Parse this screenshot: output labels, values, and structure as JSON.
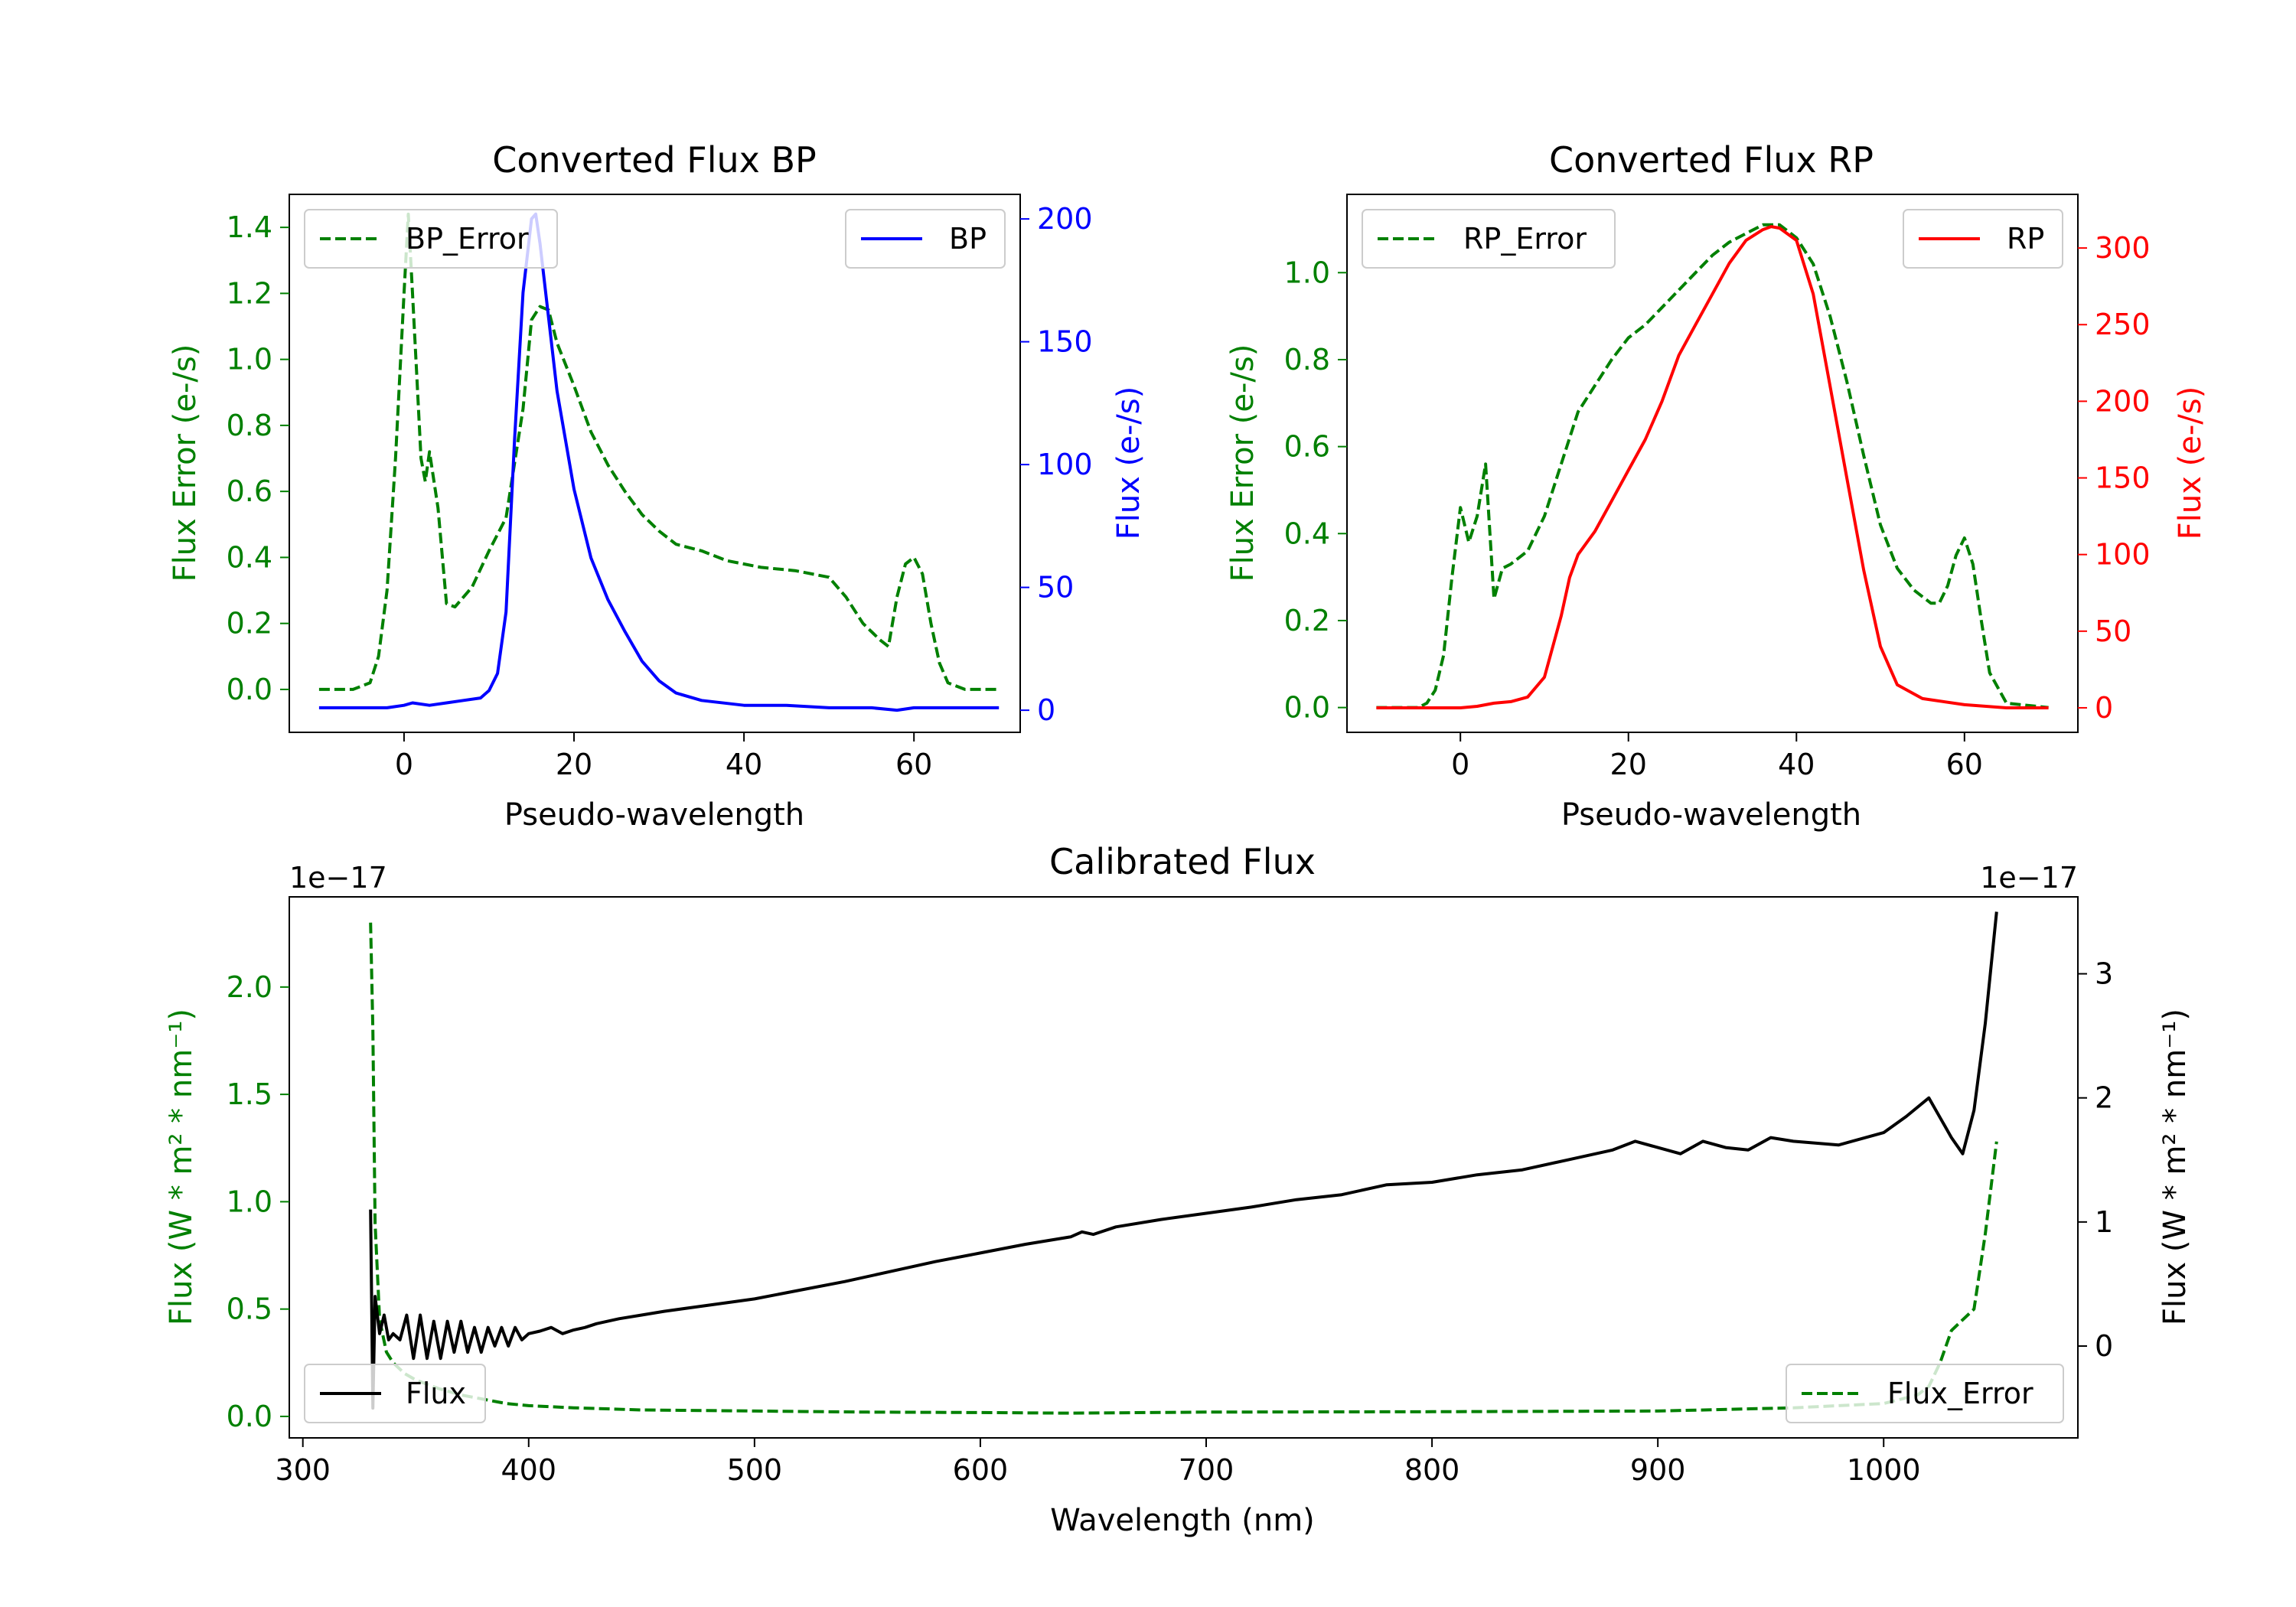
{
  "colors": {
    "error": "#008000",
    "bp": "#0000ff",
    "rp": "#ff0000",
    "flux": "#000000",
    "axis": "#000000"
  },
  "chart_data": [
    {
      "id": "bp",
      "type": "line",
      "title": "Converted Flux BP",
      "xlabel": "Pseudo-wavelength",
      "ylabel_left": "Flux Error (e-/s)",
      "ylabel_right": "Flux (e-/s)",
      "xlim": [
        -13.5,
        72.5
      ],
      "ylim_left": [
        -0.13,
        1.5
      ],
      "ylim_right": [
        -9,
        210
      ],
      "xticks": [
        0,
        20,
        40,
        60
      ],
      "yticks_left": [
        0.0,
        0.2,
        0.4,
        0.6,
        0.8,
        1.0,
        1.2,
        1.4
      ],
      "yticks_right": [
        0,
        50,
        100,
        150,
        200
      ],
      "legend_left": {
        "label": "BP_Error",
        "position": "top-left"
      },
      "legend_right": {
        "label": "BP",
        "position": "top-right"
      },
      "series": [
        {
          "name": "BP_Error",
          "axis": "left",
          "style": "dashed",
          "color": "#008000",
          "x": [
            -10,
            -6,
            -4,
            -3,
            -2,
            -1,
            0,
            0.5,
            1,
            1.5,
            2,
            2.5,
            3,
            4,
            5,
            6,
            8,
            10,
            12,
            14,
            15,
            16,
            17,
            18,
            20,
            22,
            24,
            26,
            28,
            30,
            32,
            35,
            38,
            42,
            46,
            50,
            52,
            54,
            56,
            57,
            58,
            59,
            60,
            61,
            62,
            63,
            64,
            66,
            70
          ],
          "y": [
            0.0,
            0.0,
            0.02,
            0.1,
            0.3,
            0.7,
            1.2,
            1.44,
            1.2,
            0.95,
            0.7,
            0.63,
            0.72,
            0.55,
            0.26,
            0.25,
            0.31,
            0.42,
            0.52,
            0.85,
            1.12,
            1.16,
            1.15,
            1.05,
            0.92,
            0.78,
            0.68,
            0.6,
            0.53,
            0.48,
            0.44,
            0.42,
            0.39,
            0.37,
            0.36,
            0.34,
            0.28,
            0.2,
            0.15,
            0.13,
            0.28,
            0.38,
            0.4,
            0.35,
            0.2,
            0.08,
            0.02,
            0.0,
            0.0
          ]
        },
        {
          "name": "BP",
          "axis": "right",
          "style": "solid",
          "color": "#0000ff",
          "x": [
            -10,
            -5,
            -2,
            0,
            1,
            3,
            5,
            7,
            9,
            10,
            11,
            12,
            13,
            14,
            15,
            15.5,
            16,
            17,
            18,
            19,
            20,
            22,
            24,
            26,
            28,
            30,
            32,
            35,
            40,
            45,
            50,
            55,
            58,
            60,
            62,
            65,
            70
          ],
          "y": [
            1,
            1,
            1,
            2,
            3,
            2,
            3,
            4,
            5,
            8,
            15,
            40,
            110,
            170,
            200,
            202,
            190,
            160,
            130,
            110,
            90,
            62,
            45,
            32,
            20,
            12,
            7,
            4,
            2,
            2,
            1,
            1,
            0,
            1,
            1,
            1,
            1
          ]
        }
      ]
    },
    {
      "id": "rp",
      "type": "line",
      "title": "Converted Flux RP",
      "xlabel": "Pseudo-wavelength",
      "ylabel_left": "Flux Error (e-/s)",
      "ylabel_right": "Flux (e-/s)",
      "xlim": [
        -13.5,
        73.5
      ],
      "ylim_left": [
        -0.057,
        1.18
      ],
      "ylim_right": [
        -16,
        335
      ],
      "xticks": [
        0,
        20,
        40,
        60
      ],
      "yticks_left": [
        0.0,
        0.2,
        0.4,
        0.6,
        0.8,
        1.0
      ],
      "yticks_right": [
        0,
        50,
        100,
        150,
        200,
        250,
        300
      ],
      "legend_left": {
        "label": "RP_Error",
        "position": "top-left"
      },
      "legend_right": {
        "label": "RP",
        "position": "top-right"
      },
      "series": [
        {
          "name": "RP_Error",
          "axis": "left",
          "style": "dashed",
          "color": "#008000",
          "x": [
            -10,
            -5,
            -4,
            -3,
            -2,
            -1,
            0,
            1,
            2,
            3,
            4,
            5,
            6,
            8,
            10,
            12,
            14,
            16,
            18,
            20,
            22,
            24,
            26,
            28,
            30,
            32,
            34,
            36,
            38,
            40,
            42,
            44,
            46,
            48,
            50,
            52,
            54,
            56,
            57,
            58,
            59,
            60,
            61,
            62,
            63,
            65,
            70
          ],
          "y": [
            0.0,
            0.0,
            0.01,
            0.04,
            0.12,
            0.3,
            0.46,
            0.38,
            0.44,
            0.56,
            0.25,
            0.32,
            0.33,
            0.36,
            0.44,
            0.56,
            0.68,
            0.74,
            0.8,
            0.85,
            0.88,
            0.92,
            0.96,
            1.0,
            1.04,
            1.07,
            1.09,
            1.11,
            1.11,
            1.08,
            1.02,
            0.9,
            0.75,
            0.58,
            0.42,
            0.32,
            0.27,
            0.24,
            0.24,
            0.28,
            0.35,
            0.39,
            0.33,
            0.2,
            0.08,
            0.01,
            0.0
          ]
        },
        {
          "name": "RP",
          "axis": "right",
          "style": "solid",
          "color": "#ff0000",
          "x": [
            -10,
            -5,
            0,
            2,
            4,
            6,
            8,
            10,
            12,
            13,
            14,
            16,
            18,
            20,
            22,
            24,
            26,
            28,
            30,
            32,
            34,
            36,
            37,
            38,
            40,
            42,
            44,
            46,
            48,
            50,
            52,
            55,
            60,
            65,
            70
          ],
          "y": [
            0,
            0,
            0,
            1,
            3,
            4,
            7,
            20,
            60,
            85,
            100,
            115,
            135,
            155,
            175,
            200,
            230,
            250,
            270,
            290,
            305,
            312,
            314,
            313,
            305,
            270,
            210,
            150,
            90,
            40,
            15,
            6,
            2,
            0,
            0
          ]
        }
      ]
    },
    {
      "id": "calibrated",
      "type": "line",
      "title": "Calibrated Flux",
      "xlabel": "Wavelength (nm)",
      "ylabel_left": "Flux (W * m² * nm⁻¹)",
      "ylabel_right": "Flux (W * m² * nm⁻¹)",
      "offset_left": "1e−17",
      "offset_right": "1e−17",
      "xlim": [
        294,
        1086
      ],
      "ylim_left": [
        -0.1,
        2.42
      ],
      "ylim_right": [
        -0.74,
        3.62
      ],
      "xticks": [
        300,
        400,
        500,
        600,
        700,
        800,
        900,
        1000
      ],
      "yticks_left": [
        0.0,
        0.5,
        1.0,
        1.5,
        2.0
      ],
      "yticks_right": [
        0,
        1,
        2,
        3
      ],
      "legend_left": {
        "label": "Flux",
        "position": "bottom-left"
      },
      "legend_right": {
        "label": "Flux_Error",
        "position": "bottom-right"
      },
      "series": [
        {
          "name": "Flux_Error",
          "axis": "left",
          "style": "dashed",
          "color": "#008000",
          "x": [
            330,
            331,
            332,
            334,
            337,
            340,
            345,
            350,
            360,
            370,
            380,
            390,
            400,
            420,
            450,
            500,
            550,
            600,
            640,
            700,
            800,
            900,
            960,
            1000,
            1015,
            1020,
            1025,
            1030,
            1035,
            1040,
            1045,
            1050
          ],
          "y": [
            2.3,
            1.8,
            0.9,
            0.45,
            0.3,
            0.25,
            0.2,
            0.17,
            0.13,
            0.1,
            0.08,
            0.06,
            0.05,
            0.04,
            0.03,
            0.025,
            0.02,
            0.018,
            0.015,
            0.02,
            0.022,
            0.025,
            0.04,
            0.06,
            0.1,
            0.14,
            0.25,
            0.4,
            0.45,
            0.5,
            0.85,
            1.28
          ]
        },
        {
          "name": "Flux",
          "axis": "right",
          "style": "solid",
          "color": "#000000",
          "x": [
            330,
            331,
            332,
            334,
            336,
            338,
            340,
            343,
            346,
            349,
            352,
            355,
            358,
            361,
            364,
            367,
            370,
            373,
            376,
            379,
            382,
            385,
            388,
            391,
            394,
            397,
            400,
            405,
            410,
            415,
            420,
            425,
            430,
            440,
            450,
            460,
            480,
            500,
            520,
            540,
            560,
            580,
            600,
            620,
            640,
            645,
            650,
            660,
            680,
            700,
            720,
            740,
            760,
            780,
            800,
            820,
            840,
            860,
            880,
            890,
            900,
            910,
            920,
            930,
            940,
            950,
            960,
            980,
            1000,
            1010,
            1020,
            1030,
            1035,
            1040,
            1045,
            1050
          ],
          "y": [
            1.1,
            -0.5,
            0.4,
            0.1,
            0.25,
            0.05,
            0.1,
            0.05,
            0.25,
            -0.1,
            0.25,
            -0.1,
            0.2,
            -0.1,
            0.2,
            -0.05,
            0.2,
            -0.05,
            0.15,
            -0.05,
            0.15,
            0.0,
            0.15,
            0.0,
            0.15,
            0.05,
            0.1,
            0.12,
            0.15,
            0.1,
            0.13,
            0.15,
            0.18,
            0.22,
            0.25,
            0.28,
            0.33,
            0.38,
            0.45,
            0.52,
            0.6,
            0.68,
            0.75,
            0.82,
            0.88,
            0.92,
            0.9,
            0.96,
            1.02,
            1.07,
            1.12,
            1.18,
            1.22,
            1.3,
            1.32,
            1.38,
            1.42,
            1.5,
            1.58,
            1.65,
            1.6,
            1.55,
            1.65,
            1.6,
            1.58,
            1.68,
            1.65,
            1.62,
            1.72,
            1.85,
            2.0,
            1.68,
            1.55,
            1.9,
            2.6,
            3.5
          ]
        }
      ]
    }
  ]
}
